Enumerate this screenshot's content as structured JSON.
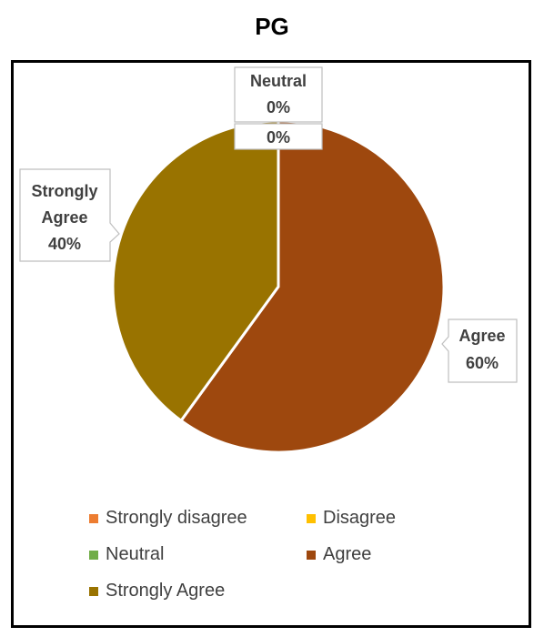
{
  "chart_data": {
    "type": "pie",
    "title": "PG",
    "slices": [
      {
        "label": "Strongly disagree",
        "value": 0,
        "color": "#ED7D31"
      },
      {
        "label": "Disagree",
        "value": 0,
        "color": "#FFC000"
      },
      {
        "label": "Neutral",
        "value": 0,
        "color": "#70AD47"
      },
      {
        "label": "Agree",
        "value": 60,
        "color": "#9E480E"
      },
      {
        "label": "Strongly Agree",
        "value": 40,
        "color": "#997300"
      }
    ],
    "data_labels": {
      "neutral": {
        "name": "Neutral",
        "percent": "0%"
      },
      "extra": "0%",
      "agree": {
        "name": "Agree",
        "percent": "60%"
      },
      "strongly_agree": {
        "name_line1": "Strongly",
        "name_line2": "Agree",
        "percent": "40%"
      }
    },
    "legend": [
      "Strongly disagree",
      "Disagree",
      "Neutral",
      "Agree",
      "Strongly Agree"
    ],
    "legend_position": "bottom"
  }
}
